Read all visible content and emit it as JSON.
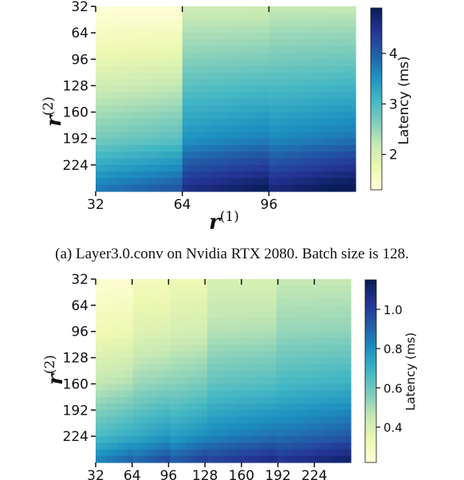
{
  "chart_data": [
    {
      "type": "heatmap",
      "id": "a",
      "caption": "(a) Layer3.0.conv on Nvidia RTX 2080. Batch size is 128.",
      "xlabel": "r",
      "xlabel_sup": "(1)",
      "ylabel": "r",
      "ylabel_sup": "(2)",
      "x_ticks": [
        32,
        64,
        96
      ],
      "y_ticks": [
        32,
        64,
        96,
        128,
        160,
        192,
        224
      ],
      "xlim": [
        32,
        128
      ],
      "ylim": [
        32,
        256
      ],
      "colorbar_label": "Latency (ms)",
      "colorbar_ticks": [
        2,
        3,
        4
      ],
      "colorbar_range": [
        1.3,
        4.9
      ],
      "colormap": [
        "#ffffd9",
        "#edf8b1",
        "#c7e9b4",
        "#7fcdbb",
        "#41b6c4",
        "#1d91c0",
        "#225ea8",
        "#253494",
        "#081d58"
      ],
      "grid": false,
      "x_bands": [
        {
          "x_start": 32,
          "x_end": 64,
          "base": 1.3
        },
        {
          "x_start": 64,
          "x_end": 96,
          "base": 2.1
        },
        {
          "x_start": 96,
          "x_end": 128,
          "base": 2.2
        }
      ],
      "y_profile": [
        {
          "y": 32,
          "add": 0.0
        },
        {
          "y": 96,
          "add": 0.5
        },
        {
          "y": 128,
          "add": 0.8
        },
        {
          "y": 192,
          "add": 1.4
        },
        {
          "y": 256,
          "add": 2.5
        }
      ]
    },
    {
      "type": "heatmap",
      "id": "b",
      "caption": "",
      "xlabel": "",
      "xlabel_sup": "",
      "ylabel": "r",
      "ylabel_sup": "(2)",
      "x_ticks": [
        32,
        64,
        96,
        128,
        160,
        192,
        224
      ],
      "y_ticks": [
        32,
        64,
        96,
        128,
        160,
        192,
        224
      ],
      "xlim": [
        32,
        256
      ],
      "ylim": [
        32,
        256
      ],
      "colorbar_label": "Latency (ms)",
      "colorbar_ticks": [
        0.4,
        0.6,
        0.8,
        1.0
      ],
      "colorbar_range": [
        0.22,
        1.15
      ],
      "colormap": [
        "#ffffd9",
        "#edf8b1",
        "#c7e9b4",
        "#7fcdbb",
        "#41b6c4",
        "#1d91c0",
        "#225ea8",
        "#253494",
        "#081d58"
      ],
      "grid": false,
      "x_bands": [
        {
          "x_start": 32,
          "x_end": 64,
          "base": 0.24
        },
        {
          "x_start": 64,
          "x_end": 96,
          "base": 0.3
        },
        {
          "x_start": 96,
          "x_end": 128,
          "base": 0.33
        },
        {
          "x_start": 128,
          "x_end": 192,
          "base": 0.4
        },
        {
          "x_start": 192,
          "x_end": 256,
          "base": 0.45
        }
      ],
      "y_profile": [
        {
          "y": 32,
          "add": 0.0
        },
        {
          "y": 96,
          "add": 0.08
        },
        {
          "y": 160,
          "add": 0.22
        },
        {
          "y": 224,
          "add": 0.42
        },
        {
          "y": 256,
          "add": 0.6
        }
      ]
    }
  ]
}
